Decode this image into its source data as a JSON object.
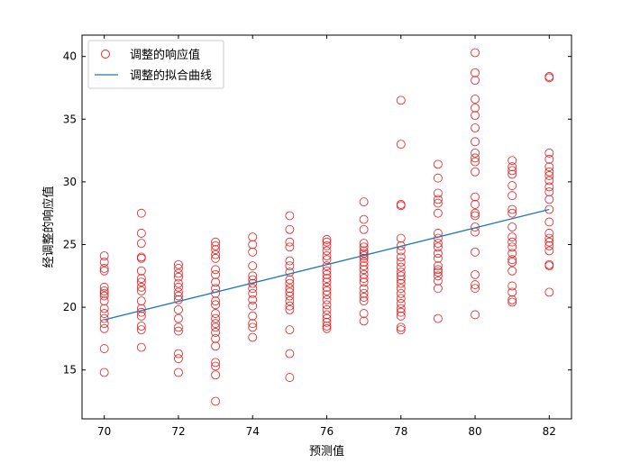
{
  "chart_data": {
    "type": "scatter",
    "xlabel": "预测值",
    "ylabel": "经调整的响应值",
    "xlim": [
      69.4,
      82.6
    ],
    "ylim": [
      11.1,
      41.7
    ],
    "xticks": [
      70,
      72,
      74,
      76,
      78,
      80,
      82
    ],
    "yticks": [
      15,
      20,
      25,
      30,
      35,
      40
    ],
    "grid": false,
    "legend_position": "top-left",
    "series": [
      {
        "name": "调整的响应值",
        "kind": "scatter",
        "color": "#e41a1c",
        "points": [
          [
            70,
            24.1
          ],
          [
            70,
            23.6
          ],
          [
            70,
            23.1
          ],
          [
            70,
            22.9
          ],
          [
            70,
            21.6
          ],
          [
            70,
            21.3
          ],
          [
            70,
            21.1
          ],
          [
            70,
            20.9
          ],
          [
            70,
            20.5
          ],
          [
            70,
            19.9
          ],
          [
            70,
            19.5
          ],
          [
            70,
            19.1
          ],
          [
            70,
            18.7
          ],
          [
            70,
            18.3
          ],
          [
            70,
            16.7
          ],
          [
            70,
            14.8
          ],
          [
            71,
            27.5
          ],
          [
            71,
            25.9
          ],
          [
            71,
            25.1
          ],
          [
            71,
            24.0
          ],
          [
            71,
            23.9
          ],
          [
            71,
            22.9
          ],
          [
            71,
            22.3
          ],
          [
            71,
            22.0
          ],
          [
            71,
            21.6
          ],
          [
            71,
            21.3
          ],
          [
            71,
            20.5
          ],
          [
            71,
            19.9
          ],
          [
            71,
            19.6
          ],
          [
            71,
            19.3
          ],
          [
            71,
            18.5
          ],
          [
            71,
            18.2
          ],
          [
            71,
            16.8
          ],
          [
            72,
            23.4
          ],
          [
            72,
            23.1
          ],
          [
            72,
            22.7
          ],
          [
            72,
            22.4
          ],
          [
            72,
            21.9
          ],
          [
            72,
            21.6
          ],
          [
            72,
            21.2
          ],
          [
            72,
            20.9
          ],
          [
            72,
            20.6
          ],
          [
            72,
            19.8
          ],
          [
            72,
            19.1
          ],
          [
            72,
            18.4
          ],
          [
            72,
            18.1
          ],
          [
            72,
            16.3
          ],
          [
            72,
            15.9
          ],
          [
            72,
            14.8
          ],
          [
            73,
            25.2
          ],
          [
            73,
            24.9
          ],
          [
            73,
            24.6
          ],
          [
            73,
            24.2
          ],
          [
            73,
            23.9
          ],
          [
            73,
            23.0
          ],
          [
            73,
            22.6
          ],
          [
            73,
            22.0
          ],
          [
            73,
            21.5
          ],
          [
            73,
            21.1
          ],
          [
            73,
            20.5
          ],
          [
            73,
            20.2
          ],
          [
            73,
            19.5
          ],
          [
            73,
            19.1
          ],
          [
            73,
            18.7
          ],
          [
            73,
            18.4
          ],
          [
            73,
            18.0
          ],
          [
            73,
            17.5
          ],
          [
            73,
            16.9
          ],
          [
            73,
            15.6
          ],
          [
            73,
            15.3
          ],
          [
            73,
            14.6
          ],
          [
            73,
            12.5
          ],
          [
            74,
            25.6
          ],
          [
            74,
            25.0
          ],
          [
            74,
            24.4
          ],
          [
            74,
            23.3
          ],
          [
            74,
            22.5
          ],
          [
            74,
            22.2
          ],
          [
            74,
            21.9
          ],
          [
            74,
            21.5
          ],
          [
            74,
            21.1
          ],
          [
            74,
            20.6
          ],
          [
            74,
            20.1
          ],
          [
            74,
            19.3
          ],
          [
            74,
            18.7
          ],
          [
            74,
            18.4
          ],
          [
            74,
            17.6
          ],
          [
            75,
            27.3
          ],
          [
            75,
            26.2
          ],
          [
            75,
            25.2
          ],
          [
            75,
            24.8
          ],
          [
            75,
            23.7
          ],
          [
            75,
            23.3
          ],
          [
            75,
            22.8
          ],
          [
            75,
            22.2
          ],
          [
            75,
            21.9
          ],
          [
            75,
            21.5
          ],
          [
            75,
            21.2
          ],
          [
            75,
            20.9
          ],
          [
            75,
            20.5
          ],
          [
            75,
            20.1
          ],
          [
            75,
            19.8
          ],
          [
            75,
            18.2
          ],
          [
            75,
            16.3
          ],
          [
            75,
            14.4
          ],
          [
            76,
            25.4
          ],
          [
            76,
            25.2
          ],
          [
            76,
            24.9
          ],
          [
            76,
            24.5
          ],
          [
            76,
            24.1
          ],
          [
            76,
            23.8
          ],
          [
            76,
            23.3
          ],
          [
            76,
            22.9
          ],
          [
            76,
            22.6
          ],
          [
            76,
            22.3
          ],
          [
            76,
            22.0
          ],
          [
            76,
            21.6
          ],
          [
            76,
            21.3
          ],
          [
            76,
            21.0
          ],
          [
            76,
            20.6
          ],
          [
            76,
            20.2
          ],
          [
            76,
            19.8
          ],
          [
            76,
            19.4
          ],
          [
            76,
            19.1
          ],
          [
            76,
            18.8
          ],
          [
            76,
            18.5
          ],
          [
            76,
            18.3
          ],
          [
            77,
            28.4
          ],
          [
            77,
            27.0
          ],
          [
            77,
            26.2
          ],
          [
            77,
            25.1
          ],
          [
            77,
            24.8
          ],
          [
            77,
            24.5
          ],
          [
            77,
            24.3
          ],
          [
            77,
            24.1
          ],
          [
            77,
            23.9
          ],
          [
            77,
            23.6
          ],
          [
            77,
            23.3
          ],
          [
            77,
            23.0
          ],
          [
            77,
            22.6
          ],
          [
            77,
            22.3
          ],
          [
            77,
            22.0
          ],
          [
            77,
            21.5
          ],
          [
            77,
            21.1
          ],
          [
            77,
            20.8
          ],
          [
            77,
            20.5
          ],
          [
            77,
            19.5
          ],
          [
            77,
            18.9
          ],
          [
            78,
            36.5
          ],
          [
            78,
            33.0
          ],
          [
            78,
            28.2
          ],
          [
            78,
            28.1
          ],
          [
            78,
            25.5
          ],
          [
            78,
            24.9
          ],
          [
            78,
            24.5
          ],
          [
            78,
            24.0
          ],
          [
            78,
            23.6
          ],
          [
            78,
            23.2
          ],
          [
            78,
            22.8
          ],
          [
            78,
            22.5
          ],
          [
            78,
            22.2
          ],
          [
            78,
            21.9
          ],
          [
            78,
            21.5
          ],
          [
            78,
            21.1
          ],
          [
            78,
            20.7
          ],
          [
            78,
            20.3
          ],
          [
            78,
            19.9
          ],
          [
            78,
            19.6
          ],
          [
            78,
            19.3
          ],
          [
            78,
            18.4
          ],
          [
            78,
            18.2
          ],
          [
            79,
            31.4
          ],
          [
            79,
            30.3
          ],
          [
            79,
            29.1
          ],
          [
            79,
            28.6
          ],
          [
            79,
            28.3
          ],
          [
            79,
            27.5
          ],
          [
            79,
            25.9
          ],
          [
            79,
            25.5
          ],
          [
            79,
            25.1
          ],
          [
            79,
            24.8
          ],
          [
            79,
            24.3
          ],
          [
            79,
            23.9
          ],
          [
            79,
            23.3
          ],
          [
            79,
            23.0
          ],
          [
            79,
            22.8
          ],
          [
            79,
            22.5
          ],
          [
            79,
            22.1
          ],
          [
            79,
            21.5
          ],
          [
            79,
            19.1
          ],
          [
            80,
            40.3
          ],
          [
            80,
            38.7
          ],
          [
            80,
            38.1
          ],
          [
            80,
            36.6
          ],
          [
            80,
            35.9
          ],
          [
            80,
            35.3
          ],
          [
            80,
            34.3
          ],
          [
            80,
            33.2
          ],
          [
            80,
            32.3
          ],
          [
            80,
            31.9
          ],
          [
            80,
            31.6
          ],
          [
            80,
            30.8
          ],
          [
            80,
            28.8
          ],
          [
            80,
            28.2
          ],
          [
            80,
            27.5
          ],
          [
            80,
            27.3
          ],
          [
            80,
            26.4
          ],
          [
            80,
            26.0
          ],
          [
            80,
            24.4
          ],
          [
            80,
            22.6
          ],
          [
            80,
            21.8
          ],
          [
            80,
            21.5
          ],
          [
            80,
            19.4
          ],
          [
            81,
            31.7
          ],
          [
            81,
            31.2
          ],
          [
            81,
            30.9
          ],
          [
            81,
            30.6
          ],
          [
            81,
            29.7
          ],
          [
            81,
            28.9
          ],
          [
            81,
            27.8
          ],
          [
            81,
            27.5
          ],
          [
            81,
            26.4
          ],
          [
            81,
            25.6
          ],
          [
            81,
            25.2
          ],
          [
            81,
            24.8
          ],
          [
            81,
            24.3
          ],
          [
            81,
            23.8
          ],
          [
            81,
            23.6
          ],
          [
            81,
            22.9
          ],
          [
            81,
            21.7
          ],
          [
            81,
            21.2
          ],
          [
            81,
            20.6
          ],
          [
            81,
            20.4
          ],
          [
            82,
            38.4
          ],
          [
            82,
            38.3
          ],
          [
            82,
            32.3
          ],
          [
            82,
            31.8
          ],
          [
            82,
            31.2
          ],
          [
            82,
            30.8
          ],
          [
            82,
            30.5
          ],
          [
            82,
            30.1
          ],
          [
            82,
            29.6
          ],
          [
            82,
            29.2
          ],
          [
            82,
            28.6
          ],
          [
            82,
            27.8
          ],
          [
            82,
            26.8
          ],
          [
            82,
            25.9
          ],
          [
            82,
            25.5
          ],
          [
            82,
            25.2
          ],
          [
            82,
            24.9
          ],
          [
            82,
            24.5
          ],
          [
            82,
            23.4
          ],
          [
            82,
            23.3
          ],
          [
            82,
            21.2
          ]
        ]
      },
      {
        "name": "调整的拟合曲线",
        "kind": "line",
        "color": "#1f77b4",
        "x": [
          70,
          82
        ],
        "y": [
          19.0,
          27.8
        ]
      }
    ]
  }
}
